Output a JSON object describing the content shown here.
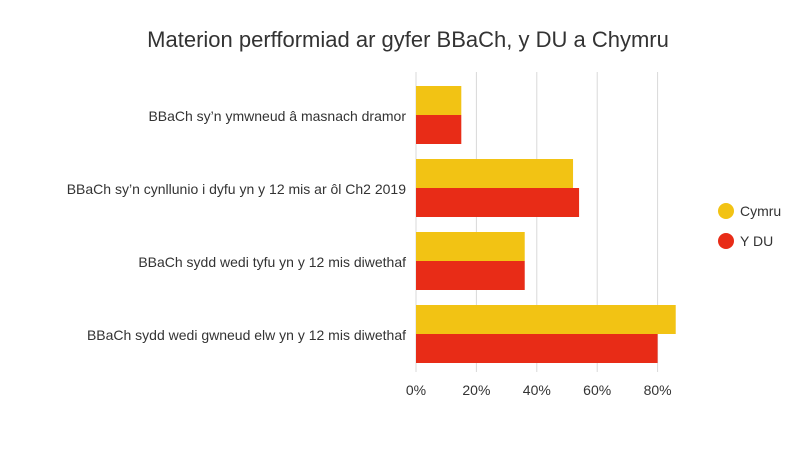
{
  "chart_data": {
    "type": "bar",
    "orientation": "horizontal",
    "title": "Materion perfformiad ar gyfer BBaCh, y DU a Chymru",
    "categories": [
      "BBaCh sy’n ymwneud â masnach dramor",
      "BBaCh sy’n cynllunio i dyfu yn y 12 mis ar ôl Ch2 2019",
      "BBaCh sydd wedi tyfu yn y 12 mis diwethaf",
      "BBaCh sydd wedi gwneud elw yn y 12 mis diwethaf"
    ],
    "series": [
      {
        "name": "Cymru",
        "color": "#f2c314",
        "values": [
          15,
          52,
          36,
          86
        ]
      },
      {
        "name": "Y DU",
        "color": "#e82c17",
        "values": [
          15,
          54,
          36,
          80
        ]
      }
    ],
    "xlim": [
      0,
      90
    ],
    "xticks": [
      0,
      20,
      40,
      60,
      80
    ],
    "xtick_labels": [
      "0%",
      "20%",
      "40%",
      "60%",
      "80%"
    ],
    "grid": true,
    "legend_position": "right"
  }
}
